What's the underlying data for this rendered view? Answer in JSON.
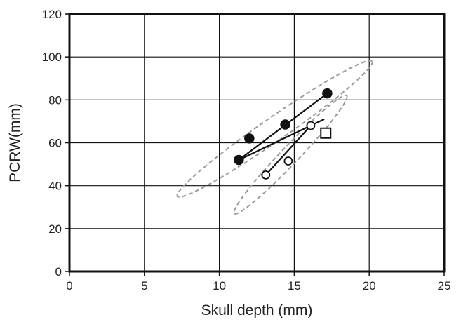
{
  "chart_data": {
    "type": "scatter",
    "xlabel": "Skull depth (mm)",
    "ylabel": "PCRW(mm)",
    "xlim": [
      0,
      25
    ],
    "ylim": [
      0,
      120
    ],
    "xticks": [
      "0",
      "5",
      "10",
      "15",
      "20",
      "25"
    ],
    "yticks": [
      "0",
      "20",
      "40",
      "60",
      "80",
      "100",
      "120"
    ],
    "grid": true,
    "legend": "none",
    "series": [
      {
        "marker": "filled-circle",
        "points": [
          {
            "x": 11.3,
            "y": 52
          },
          {
            "x": 12.0,
            "y": 62
          },
          {
            "x": 14.4,
            "y": 68.5
          },
          {
            "x": 17.2,
            "y": 83
          }
        ],
        "trend_line": {
          "x": [
            11.3,
            17.2
          ],
          "y": [
            52,
            83
          ]
        }
      },
      {
        "marker": "open-circle",
        "points": [
          {
            "x": 13.1,
            "y": 45
          },
          {
            "x": 14.6,
            "y": 51.5
          },
          {
            "x": 16.1,
            "y": 68
          }
        ],
        "trend_line": {
          "x": [
            13.1,
            16.1
          ],
          "y": [
            45,
            68
          ]
        }
      },
      {
        "marker": "open-square",
        "points": [
          {
            "x": 17.1,
            "y": 64.5
          }
        ]
      }
    ],
    "connector_line": {
      "x": [
        11.3,
        17.0
      ],
      "y": [
        52,
        71
      ]
    },
    "ellipses": [
      {
        "style": "dashed",
        "color": "#9a9a9a",
        "major_axis": {
          "x": [
            7.2,
            20.2
          ],
          "y": [
            35,
            98
          ]
        },
        "minor_width": [
          2.4,
          14
        ]
      },
      {
        "style": "dashed",
        "color": "#9a9a9a",
        "major_axis": {
          "x": [
            11.0,
            18.5
          ],
          "y": [
            27,
            82
          ]
        },
        "minor_width": [
          1.6,
          12
        ]
      }
    ]
  }
}
